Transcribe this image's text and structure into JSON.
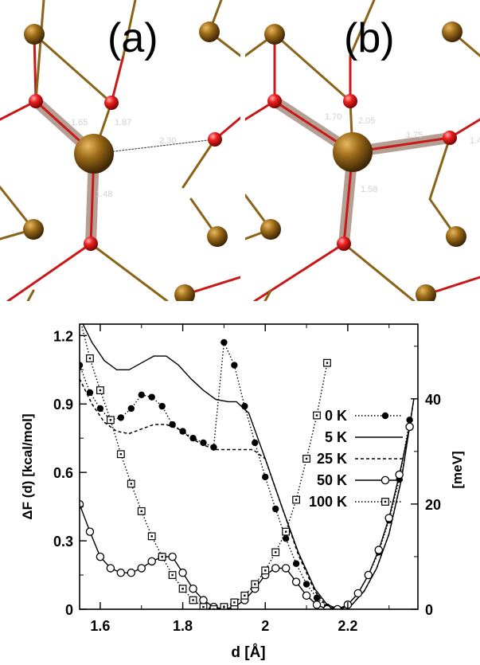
{
  "panels": [
    {
      "letter": "(a)",
      "bond_labels": [
        "1.65",
        "1.87",
        "2.30",
        "1.48"
      ]
    },
    {
      "letter": "(b)",
      "bond_labels": [
        "1.70",
        "2.05",
        "1.75",
        "1.4",
        "1.58"
      ]
    }
  ],
  "colors": {
    "atom_gold": "#8a5a0c",
    "atom_oxygen": "#e01818",
    "bond_red": "#c81818",
    "bond_gold": "#8a6418",
    "highlight": "#9a8070"
  },
  "chart_data": {
    "type": "line",
    "title": "",
    "xlabel": "d [Å]",
    "ylabel": "ΔF (d) [kcal/mol]",
    "y2label": "[meV]",
    "xlim": [
      1.55,
      2.37
    ],
    "ylim": [
      0,
      1.25
    ],
    "y2lim": [
      0,
      54.2
    ],
    "xticks": [
      "1.6",
      "1.8",
      "2",
      "2.2"
    ],
    "yticks": [
      "0",
      "0.3",
      "0.6",
      "0.9",
      "1.2"
    ],
    "y2ticks": [
      "0",
      "20",
      "40"
    ],
    "legend_position": "right",
    "series": [
      {
        "name": "0 K",
        "style": "dotted-filled-circle",
        "x": [
          1.55,
          1.575,
          1.6,
          1.625,
          1.65,
          1.675,
          1.7,
          1.725,
          1.75,
          1.775,
          1.8,
          1.825,
          1.85,
          1.875,
          1.9,
          1.925,
          1.95,
          1.975,
          2.0,
          2.025,
          2.05,
          2.075,
          2.1,
          2.125,
          2.15,
          2.175,
          2.2,
          2.225,
          2.25,
          2.275,
          2.3,
          2.325,
          2.35
        ],
        "y": [
          1.07,
          0.95,
          0.88,
          0.83,
          0.84,
          0.88,
          0.94,
          0.93,
          0.89,
          0.81,
          0.78,
          0.75,
          0.73,
          0.71,
          1.17,
          1.07,
          0.89,
          0.73,
          0.58,
          0.44,
          0.31,
          0.2,
          0.11,
          0.05,
          0.01,
          0.0,
          0.02,
          0.07,
          0.15,
          0.25,
          0.39,
          0.57,
          0.83
        ]
      },
      {
        "name": "5 K",
        "style": "solid",
        "x": [
          1.55,
          1.58,
          1.61,
          1.64,
          1.67,
          1.7,
          1.73,
          1.76,
          1.79,
          1.82,
          1.85,
          1.88,
          1.91,
          1.93,
          1.96,
          2.0,
          2.04,
          2.08,
          2.12,
          2.15,
          2.18,
          2.21,
          2.24,
          2.27,
          2.3,
          2.33,
          2.36
        ],
        "y": [
          1.28,
          1.17,
          1.09,
          1.05,
          1.05,
          1.08,
          1.11,
          1.11,
          1.07,
          1.01,
          0.96,
          0.92,
          0.91,
          0.91,
          0.86,
          0.66,
          0.45,
          0.25,
          0.09,
          0.02,
          0.0,
          0.02,
          0.08,
          0.18,
          0.33,
          0.57,
          0.92
        ]
      },
      {
        "name": "25 K",
        "style": "dashed",
        "x": [
          1.55,
          1.58,
          1.61,
          1.64,
          1.67,
          1.7,
          1.73,
          1.76,
          1.79,
          1.82,
          1.85,
          1.88,
          1.91,
          1.94,
          1.97,
          2.0,
          2.04,
          2.08,
          2.12,
          2.15,
          2.18,
          2.21,
          2.24,
          2.27,
          2.3,
          2.33,
          2.36
        ],
        "y": [
          1.01,
          0.9,
          0.82,
          0.78,
          0.77,
          0.79,
          0.81,
          0.81,
          0.79,
          0.75,
          0.72,
          0.7,
          0.7,
          0.7,
          0.7,
          0.66,
          0.45,
          0.24,
          0.08,
          0.01,
          0.0,
          0.02,
          0.08,
          0.18,
          0.33,
          0.57,
          0.92
        ]
      },
      {
        "name": "50 K",
        "style": "solid-open-circle",
        "x": [
          1.55,
          1.575,
          1.6,
          1.625,
          1.65,
          1.675,
          1.7,
          1.725,
          1.75,
          1.775,
          1.8,
          1.825,
          1.85,
          1.875,
          1.9,
          1.925,
          1.95,
          1.975,
          2.0,
          2.025,
          2.05,
          2.075,
          2.1,
          2.125,
          2.15,
          2.175,
          2.2,
          2.225,
          2.25,
          2.275,
          2.3,
          2.325,
          2.35
        ],
        "y": [
          0.46,
          0.34,
          0.23,
          0.18,
          0.16,
          0.16,
          0.18,
          0.21,
          0.23,
          0.23,
          0.16,
          0.09,
          0.04,
          0.01,
          0.0,
          0.01,
          0.04,
          0.09,
          0.15,
          0.18,
          0.18,
          0.12,
          0.06,
          0.02,
          0.0,
          0.0,
          0.02,
          0.07,
          0.15,
          0.26,
          0.4,
          0.59,
          0.8
        ]
      },
      {
        "name": "100 K",
        "style": "dotted-open-square",
        "x": [
          1.55,
          1.575,
          1.6,
          1.625,
          1.65,
          1.675,
          1.7,
          1.725,
          1.75,
          1.775,
          1.8,
          1.825,
          1.85,
          1.875,
          1.9,
          1.925,
          1.95,
          1.975,
          2.0,
          2.025,
          2.05,
          2.075,
          2.1,
          2.125,
          2.15
        ],
        "y": [
          1.28,
          1.1,
          0.96,
          0.83,
          0.68,
          0.55,
          0.43,
          0.32,
          0.23,
          0.15,
          0.09,
          0.04,
          0.01,
          0.0,
          0.01,
          0.03,
          0.06,
          0.11,
          0.17,
          0.25,
          0.34,
          0.48,
          0.66,
          0.85,
          1.08
        ]
      }
    ]
  }
}
